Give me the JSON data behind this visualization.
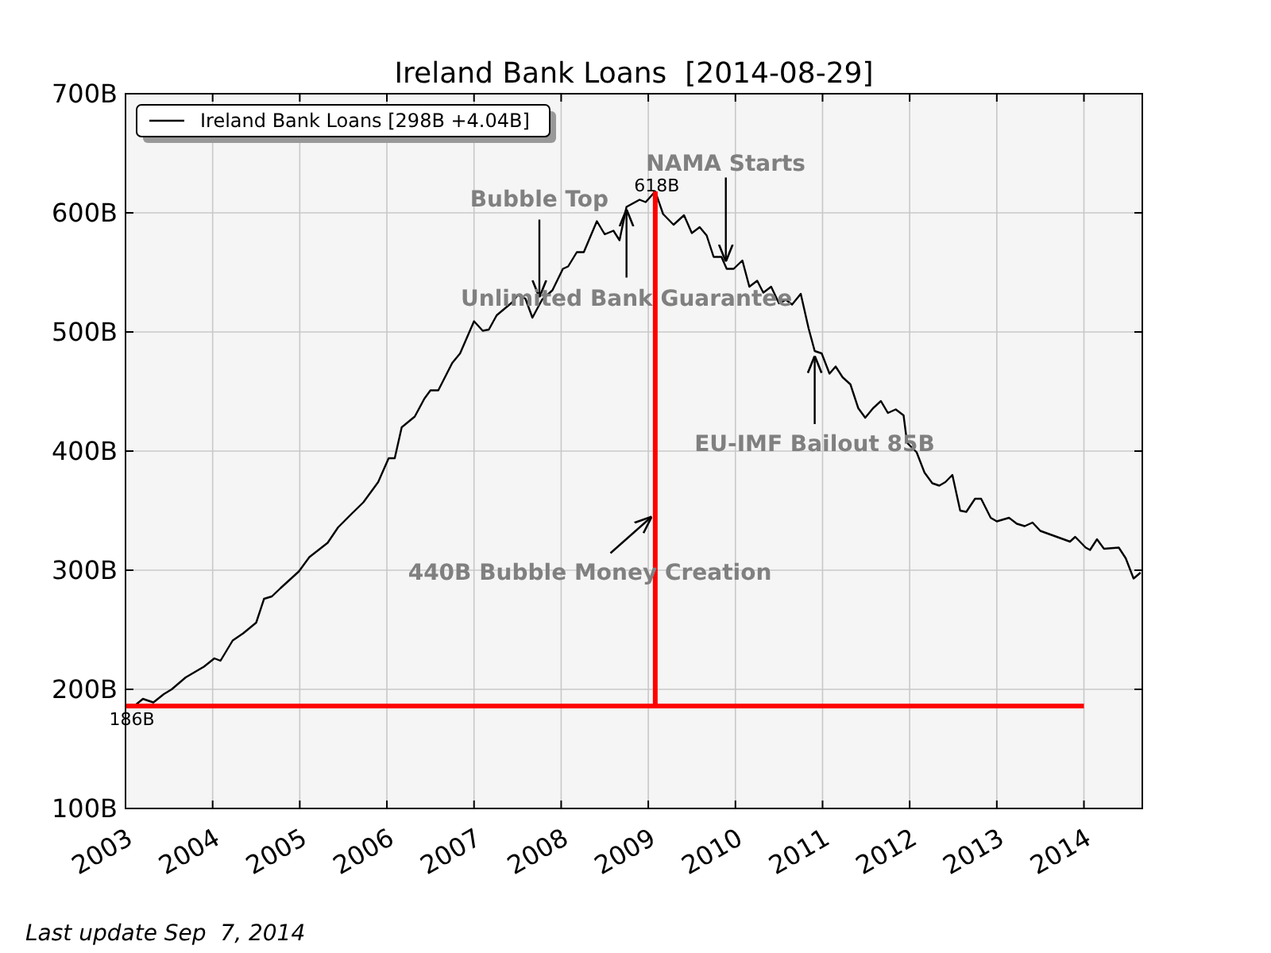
{
  "chart_data": {
    "type": "line",
    "title": "Ireland Bank Loans  [2014-08-29]",
    "xlim": [
      2003,
      2014.67
    ],
    "xticks": [
      2003,
      2004,
      2005,
      2006,
      2007,
      2008,
      2009,
      2010,
      2011,
      2012,
      2013,
      2014
    ],
    "ylim": [
      100,
      700
    ],
    "yticks": [
      {
        "value": 100,
        "label": "100B"
      },
      {
        "value": 200,
        "label": "200B"
      },
      {
        "value": 300,
        "label": "300B"
      },
      {
        "value": 400,
        "label": "400B"
      },
      {
        "value": 500,
        "label": "500B"
      },
      {
        "value": 600,
        "label": "600B"
      },
      {
        "value": 700,
        "label": "700B"
      }
    ],
    "grid": true,
    "legend": "top left",
    "series": [
      {
        "name": "Ireland Bank Loans [298B +4.04B]",
        "color": "#000000",
        "x": [
          2003.1,
          2003.2,
          2003.32,
          2003.44,
          2003.53,
          2003.69,
          2003.9,
          2004.02,
          2004.09,
          2004.23,
          2004.35,
          2004.5,
          2004.59,
          2004.68,
          2004.78,
          2004.99,
          2005.11,
          2005.32,
          2005.44,
          2005.59,
          2005.73,
          2005.9,
          2006.02,
          2006.09,
          2006.17,
          2006.32,
          2006.43,
          2006.5,
          2006.59,
          2006.75,
          2006.84,
          2007.0,
          2007.1,
          2007.17,
          2007.26,
          2007.44,
          2007.5,
          2007.59,
          2007.67,
          2007.78,
          2007.9,
          2008.02,
          2008.08,
          2008.18,
          2008.26,
          2008.41,
          2008.5,
          2008.6,
          2008.67,
          2008.75,
          2008.9,
          2008.97,
          2009.08,
          2009.17,
          2009.29,
          2009.41,
          2009.5,
          2009.59,
          2009.67,
          2009.75,
          2009.84,
          2009.9,
          2009.98,
          2010.08,
          2010.16,
          2010.25,
          2010.32,
          2010.41,
          2010.5,
          2010.58,
          2010.65,
          2010.75,
          2010.84,
          2010.91,
          2010.99,
          2011.08,
          2011.15,
          2011.23,
          2011.32,
          2011.41,
          2011.49,
          2011.58,
          2011.67,
          2011.75,
          2011.84,
          2011.93,
          2011.97,
          2012.08,
          2012.17,
          2012.26,
          2012.34,
          2012.41,
          2012.49,
          2012.58,
          2012.65,
          2012.75,
          2012.82,
          2012.93,
          2013.0,
          2013.14,
          2013.23,
          2013.32,
          2013.41,
          2013.5,
          2013.84,
          2013.9,
          2014.02,
          2014.07,
          2014.15,
          2014.23,
          2014.4,
          2014.48,
          2014.57,
          2014.65
        ],
        "values": [
          186,
          192,
          189,
          196,
          200,
          210,
          219,
          226,
          224,
          241,
          247,
          256,
          276,
          278,
          285,
          299,
          311,
          323,
          336,
          347,
          357,
          374,
          394,
          394,
          420,
          429,
          444,
          451,
          451,
          474,
          482,
          509,
          501,
          502,
          514,
          525,
          531,
          528,
          512,
          527,
          535,
          553,
          555,
          567,
          567,
          593,
          582,
          585,
          577,
          605,
          611,
          609,
          618,
          599,
          590,
          598,
          583,
          588,
          581,
          563,
          563,
          553,
          553,
          560,
          538,
          543,
          533,
          538,
          524,
          527,
          523,
          532,
          503,
          484,
          482,
          465,
          471,
          462,
          456,
          436,
          428,
          436,
          442,
          432,
          435,
          430,
          407,
          399,
          382,
          373,
          371,
          374,
          380,
          350,
          349,
          360,
          360,
          344,
          341,
          344,
          339,
          337,
          340,
          333,
          324,
          328,
          319,
          317,
          326,
          318,
          319,
          310,
          293,
          298
        ]
      },
      {
        "color": "#ff0000",
        "x": [
          2003,
          2014
        ],
        "values": [
          186,
          186
        ]
      },
      {
        "color": "#ff0000",
        "x": [
          2009.08,
          2009.08
        ],
        "values": [
          186,
          618
        ]
      }
    ],
    "annotations": [
      {
        "text": "Bubble Top",
        "x": 2007.75,
        "y": 529
      },
      {
        "text": "Unlimited Bank Guarantee",
        "x": 2008.75,
        "y": 603
      },
      {
        "text": "NAMA Starts",
        "x": 2009.89,
        "y": 559
      },
      {
        "text": "EU-IMF Bailout 85B",
        "x": 2010.91,
        "y": 480
      },
      {
        "text": "440B Bubble Money Creation",
        "x": 2009.04,
        "y": 345
      },
      {
        "text": "186B",
        "x": 2003,
        "y": 186
      },
      {
        "text": "618B",
        "x": 2009.08,
        "y": 618
      },
      "Last update Sep  7, 2014"
    ]
  }
}
